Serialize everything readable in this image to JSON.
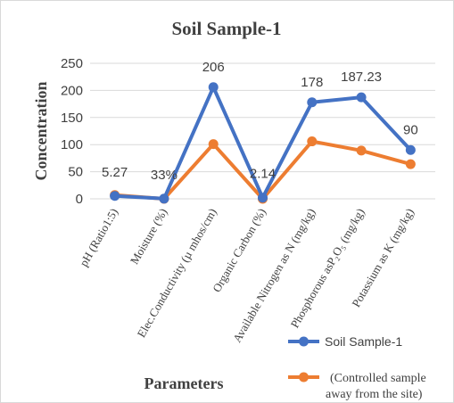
{
  "chart_data": {
    "type": "line",
    "title": "Soil Sample-1",
    "xlabel": "Parameters",
    "ylabel": "Concentration",
    "ylim": [
      0,
      250
    ],
    "yticks": [
      "0",
      "50",
      "100",
      "150",
      "200",
      "250"
    ],
    "grid": true,
    "legend": "bottom-right",
    "categories": [
      "pH (Ratio1:5)",
      "Moisture (%)",
      "Elec.Conductivity (µ mhos/cm)",
      "Organic Carbon (%)",
      "Available Nitrogen as N (mg/kg)",
      "Phosphorous asP₂O₅ (mg/kg)",
      "Potassium as K (mg/kg)"
    ],
    "series": [
      {
        "name": "Soil Sample-1",
        "color": "#4472c4",
        "values": [
          5.27,
          0.33,
          206,
          2.14,
          178,
          187.23,
          90
        ],
        "labels": [
          "5.27",
          "33%",
          "206",
          "2.14",
          "178",
          "187.23",
          "90"
        ]
      },
      {
        "name": "(Controlled sample away from the site)",
        "name_lines": [
          "(Controlled sample",
          "away from the site)"
        ],
        "color": "#ed7d31",
        "values": [
          7,
          0,
          101,
          0,
          106,
          89,
          64
        ]
      }
    ]
  }
}
